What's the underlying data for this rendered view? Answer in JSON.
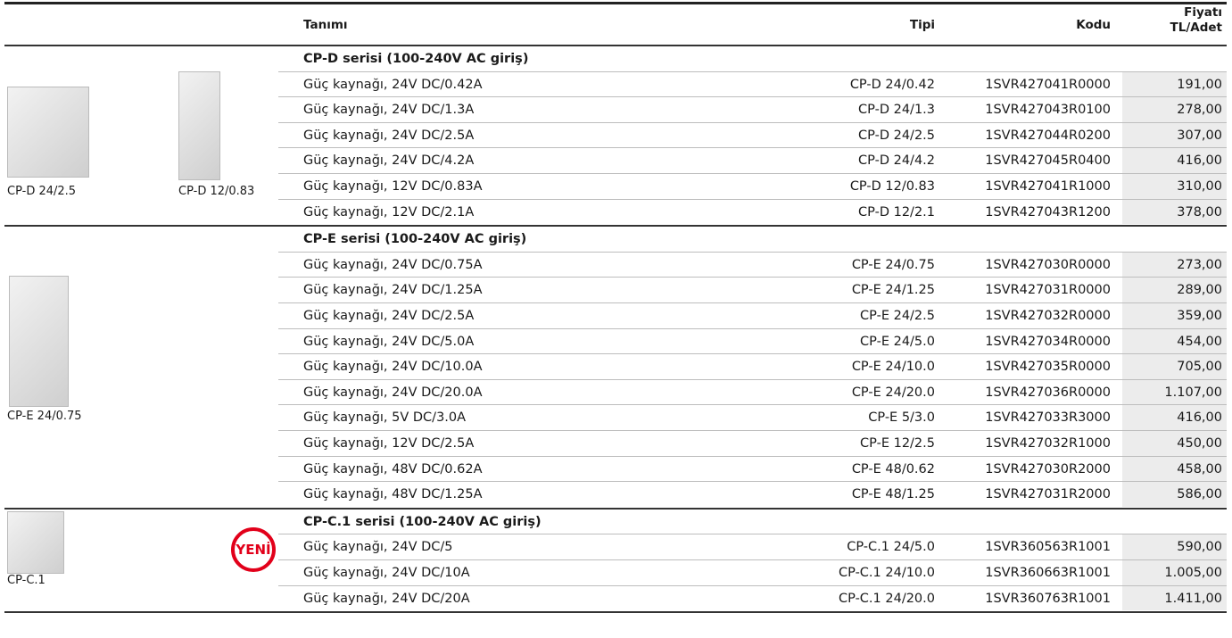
{
  "header": {
    "columns": [
      "Tanımı",
      "Tipi",
      "Kodu",
      "Fiyatı TL/Adet"
    ]
  },
  "sections": [
    {
      "title": "CP-D serisi (100-240V AC giriş)",
      "images": [
        {
          "caption": "CP-D 24/2.5"
        },
        {
          "caption": "CP-D 12/0.83"
        }
      ],
      "rows": [
        [
          "Güç kaynağı, 24V DC/0.42A",
          "CP-D 24/0.42",
          "1SVR427041R0000",
          "191,00"
        ],
        [
          "Güç kaynağı, 24V DC/1.3A",
          "CP-D 24/1.3",
          "1SVR427043R0100",
          "278,00"
        ],
        [
          "Güç kaynağı, 24V DC/2.5A",
          "CP-D 24/2.5",
          "1SVR427044R0200",
          "307,00"
        ],
        [
          "Güç kaynağı, 24V DC/4.2A",
          "CP-D 24/4.2",
          "1SVR427045R0400",
          "416,00"
        ],
        [
          "Güç kaynağı, 12V DC/0.83A",
          "CP-D 12/0.83",
          "1SVR427041R1000",
          "310,00"
        ],
        [
          "Güç kaynağı, 12V DC/2.1A",
          "CP-D 12/2.1",
          "1SVR427043R1200",
          "378,00"
        ]
      ]
    },
    {
      "title": "CP-E serisi (100-240V AC giriş)",
      "images": [
        {
          "caption": "CP-E 24/0.75"
        }
      ],
      "rows": [
        [
          "Güç kaynağı, 24V DC/0.75A",
          "CP-E 24/0.75",
          "1SVR427030R0000",
          "273,00"
        ],
        [
          "Güç kaynağı, 24V DC/1.25A",
          "CP-E 24/1.25",
          "1SVR427031R0000",
          "289,00"
        ],
        [
          "Güç kaynağı, 24V DC/2.5A",
          "CP-E 24/2.5",
          "1SVR427032R0000",
          "359,00"
        ],
        [
          "Güç kaynağı, 24V DC/5.0A",
          "CP-E 24/5.0",
          "1SVR427034R0000",
          "454,00"
        ],
        [
          "Güç kaynağı, 24V DC/10.0A",
          "CP-E 24/10.0",
          "1SVR427035R0000",
          "705,00"
        ],
        [
          "Güç kaynağı, 24V DC/20.0A",
          "CP-E 24/20.0",
          "1SVR427036R0000",
          "1.107,00"
        ],
        [
          "Güç kaynağı, 5V DC/3.0A",
          "CP-E 5/3.0",
          "1SVR427033R3000",
          "416,00"
        ],
        [
          "Güç kaynağı, 12V DC/2.5A",
          "CP-E 12/2.5",
          "1SVR427032R1000",
          "450,00"
        ],
        [
          "Güç kaynağı, 48V DC/0.62A",
          "CP-E 48/0.62",
          "1SVR427030R2000",
          "458,00"
        ],
        [
          "Güç kaynağı, 48V DC/1.25A",
          "CP-E 48/1.25",
          "1SVR427031R2000",
          "586,00"
        ]
      ]
    },
    {
      "title": "CP-C.1 serisi (100-240V AC giriş)",
      "images": [
        {
          "caption": "CP-C.1"
        }
      ],
      "badge": "YENİ",
      "rows": [
        [
          "Güç kaynağı, 24V DC/5",
          "CP-C.1 24/5.0",
          "1SVR360563R1001",
          "590,00"
        ],
        [
          "Güç kaynağı, 24V DC/10A",
          "CP-C.1 24/10.0",
          "1SVR360663R1001",
          "1.005,00"
        ],
        [
          "Güç kaynağı, 24V DC/20A",
          "CP-C.1 24/20.0",
          "1SVR360763R1001",
          "1.411,00"
        ]
      ]
    }
  ]
}
